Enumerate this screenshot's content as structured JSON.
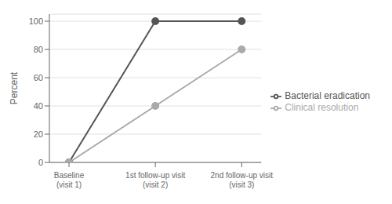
{
  "chart_data": {
    "type": "line",
    "categories": [
      "Baseline\n(visit 1)",
      "1st follow-up visit\n(visit 2)",
      "2nd follow-up visit\n(visit 3)"
    ],
    "series": [
      {
        "name": "Bacterial eradication",
        "color": "#555555",
        "values": [
          0,
          100,
          100
        ],
        "marker": "circle"
      },
      {
        "name": "Clinical resolution",
        "color": "#aaaaaa",
        "values": [
          0,
          40,
          80
        ],
        "marker": "circle"
      }
    ],
    "ylabel": "Percent",
    "ylim": [
      0,
      105
    ],
    "yticks": [
      0,
      20,
      40,
      60,
      80,
      100
    ],
    "grid": true,
    "legend": "right"
  }
}
